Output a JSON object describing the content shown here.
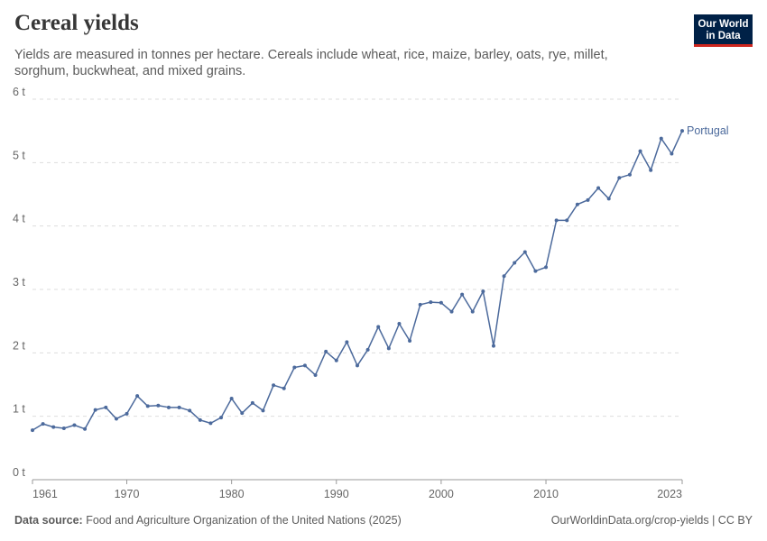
{
  "header": {
    "title": "Cereal yields",
    "subtitle": "Yields are measured in tonnes per hectare. Cereals include wheat, rice, maize, barley, oats, rye, millet, sorghum, buckwheat, and mixed grains."
  },
  "logo": {
    "line1": "Our World",
    "line2": "in Data",
    "bg_color": "#002147",
    "accent_color": "#ce261e"
  },
  "footer": {
    "source_label": "Data source:",
    "source_text": "Food and Agriculture Organization of the United Nations (2025)",
    "link_text": "OurWorldinData.org/crop-yields | CC BY"
  },
  "chart_data": {
    "type": "line",
    "xlim": [
      1961,
      2023
    ],
    "ylim": [
      0,
      6
    ],
    "x_ticks": [
      1961,
      1970,
      1980,
      1990,
      2000,
      2010,
      2023
    ],
    "y_ticks": [
      0,
      1,
      2,
      3,
      4,
      5,
      6
    ],
    "y_tick_labels": [
      "0 t",
      "1 t",
      "2 t",
      "3 t",
      "4 t",
      "5 t",
      "6 t"
    ],
    "grid": "horizontal-dashed",
    "series": [
      {
        "name": "Portugal",
        "color": "#4c6a9c",
        "x": [
          1961,
          1962,
          1963,
          1964,
          1965,
          1966,
          1967,
          1968,
          1969,
          1970,
          1971,
          1972,
          1973,
          1974,
          1975,
          1976,
          1977,
          1978,
          1979,
          1980,
          1981,
          1982,
          1983,
          1984,
          1985,
          1986,
          1987,
          1988,
          1989,
          1990,
          1991,
          1992,
          1993,
          1994,
          1995,
          1996,
          1997,
          1998,
          1999,
          2000,
          2001,
          2002,
          2003,
          2004,
          2005,
          2006,
          2007,
          2008,
          2009,
          2010,
          2011,
          2012,
          2013,
          2014,
          2015,
          2016,
          2017,
          2018,
          2019,
          2020,
          2021,
          2022,
          2023
        ],
        "values": [
          0.78,
          0.88,
          0.83,
          0.81,
          0.86,
          0.8,
          1.1,
          1.14,
          0.96,
          1.04,
          1.32,
          1.16,
          1.17,
          1.14,
          1.14,
          1.09,
          0.94,
          0.89,
          0.98,
          1.28,
          1.05,
          1.21,
          1.09,
          1.49,
          1.44,
          1.77,
          1.8,
          1.65,
          2.02,
          1.88,
          2.17,
          1.8,
          2.05,
          2.41,
          2.07,
          2.46,
          2.19,
          2.76,
          2.8,
          2.79,
          2.65,
          2.92,
          2.65,
          2.97,
          2.11,
          3.21,
          3.42,
          3.59,
          3.29,
          3.35,
          4.09,
          4.09,
          4.34,
          4.41,
          4.6,
          4.43,
          4.76,
          4.81,
          5.18,
          4.88,
          5.38,
          5.14,
          5.5
        ]
      }
    ]
  }
}
